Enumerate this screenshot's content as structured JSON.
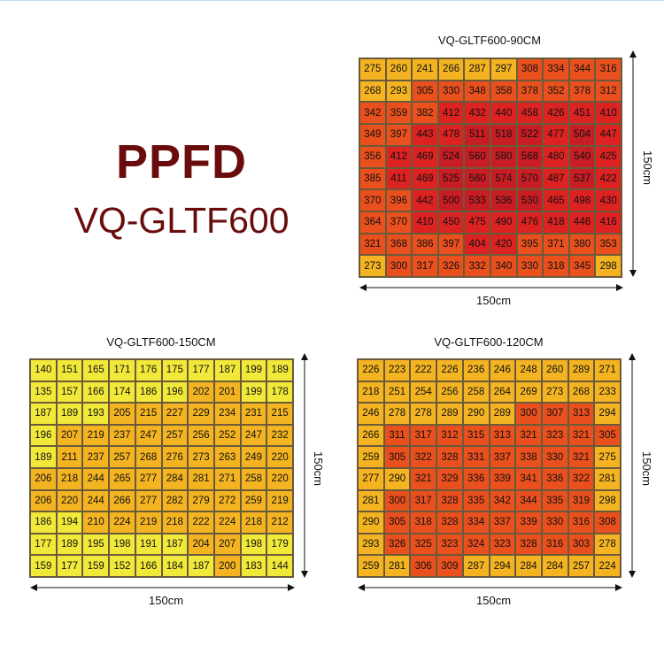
{
  "heading": {
    "title": "PPFD",
    "model": "VQ-GLTF600"
  },
  "colors": {
    "lt200": "#f1e93a",
    "lt300": "#f4b422",
    "lt400": "#e9501d",
    "lt500": "#dd2222",
    "ge500": "#c81d24",
    "title": "#6a0c0c"
  },
  "chart_data": [
    {
      "type": "heatmap",
      "title": "VQ-GLTF600-90CM",
      "xlabel": "150cm",
      "ylabel": "150cm",
      "values": [
        [
          275,
          260,
          241,
          266,
          287,
          297,
          308,
          334,
          344,
          316
        ],
        [
          268,
          293,
          305,
          330,
          348,
          358,
          378,
          352,
          378,
          312
        ],
        [
          342,
          359,
          382,
          412,
          432,
          440,
          458,
          426,
          451,
          410
        ],
        [
          349,
          397,
          443,
          478,
          511,
          518,
          522,
          477,
          504,
          447
        ],
        [
          356,
          412,
          469,
          524,
          560,
          580,
          568,
          480,
          540,
          425
        ],
        [
          385,
          411,
          469,
          525,
          560,
          574,
          570,
          487,
          537,
          422
        ],
        [
          370,
          396,
          442,
          500,
          533,
          536,
          530,
          465,
          498,
          430
        ],
        [
          364,
          370,
          410,
          450,
          475,
          490,
          476,
          418,
          446,
          416
        ],
        [
          321,
          368,
          386,
          397,
          404,
          420,
          395,
          371,
          380,
          353
        ],
        [
          273,
          300,
          317,
          326,
          332,
          340,
          330,
          318,
          345,
          298
        ]
      ]
    },
    {
      "type": "heatmap",
      "title": "VQ-GLTF600-150CM",
      "xlabel": "150cm",
      "ylabel": "150cm",
      "values": [
        [
          140,
          151,
          165,
          171,
          176,
          175,
          177,
          187,
          199,
          189
        ],
        [
          135,
          157,
          166,
          174,
          186,
          196,
          202,
          201,
          199,
          178
        ],
        [
          187,
          189,
          193,
          205,
          215,
          227,
          229,
          234,
          231,
          215
        ],
        [
          196,
          207,
          219,
          237,
          247,
          257,
          256,
          252,
          247,
          232
        ],
        [
          189,
          211,
          237,
          257,
          268,
          276,
          273,
          263,
          249,
          220
        ],
        [
          206,
          218,
          244,
          265,
          277,
          284,
          281,
          271,
          258,
          220
        ],
        [
          206,
          220,
          244,
          266,
          277,
          282,
          279,
          272,
          259,
          219
        ],
        [
          186,
          194,
          210,
          224,
          219,
          218,
          222,
          224,
          218,
          212
        ],
        [
          177,
          189,
          195,
          198,
          191,
          187,
          204,
          207,
          198,
          179
        ],
        [
          159,
          177,
          159,
          152,
          166,
          184,
          187,
          200,
          183,
          144
        ]
      ]
    },
    {
      "type": "heatmap",
      "title": "VQ-GLTF600-120CM",
      "xlabel": "150cm",
      "ylabel": "150cm",
      "values": [
        [
          226,
          223,
          222,
          226,
          236,
          246,
          248,
          260,
          289,
          271
        ],
        [
          218,
          251,
          254,
          256,
          258,
          264,
          269,
          273,
          268,
          233
        ],
        [
          246,
          278,
          278,
          289,
          290,
          289,
          300,
          307,
          313,
          294
        ],
        [
          266,
          311,
          317,
          312,
          315,
          313,
          321,
          323,
          321,
          305
        ],
        [
          259,
          305,
          322,
          328,
          331,
          337,
          338,
          330,
          321,
          275
        ],
        [
          277,
          290,
          321,
          329,
          336,
          339,
          341,
          336,
          322,
          281
        ],
        [
          281,
          300,
          317,
          328,
          335,
          342,
          344,
          335,
          319,
          298
        ],
        [
          290,
          305,
          318,
          328,
          334,
          337,
          339,
          330,
          316,
          308
        ],
        [
          293,
          326,
          325,
          323,
          324,
          323,
          328,
          316,
          303,
          278
        ],
        [
          259,
          281,
          306,
          309,
          287,
          294,
          284,
          284,
          257,
          224
        ]
      ]
    }
  ]
}
